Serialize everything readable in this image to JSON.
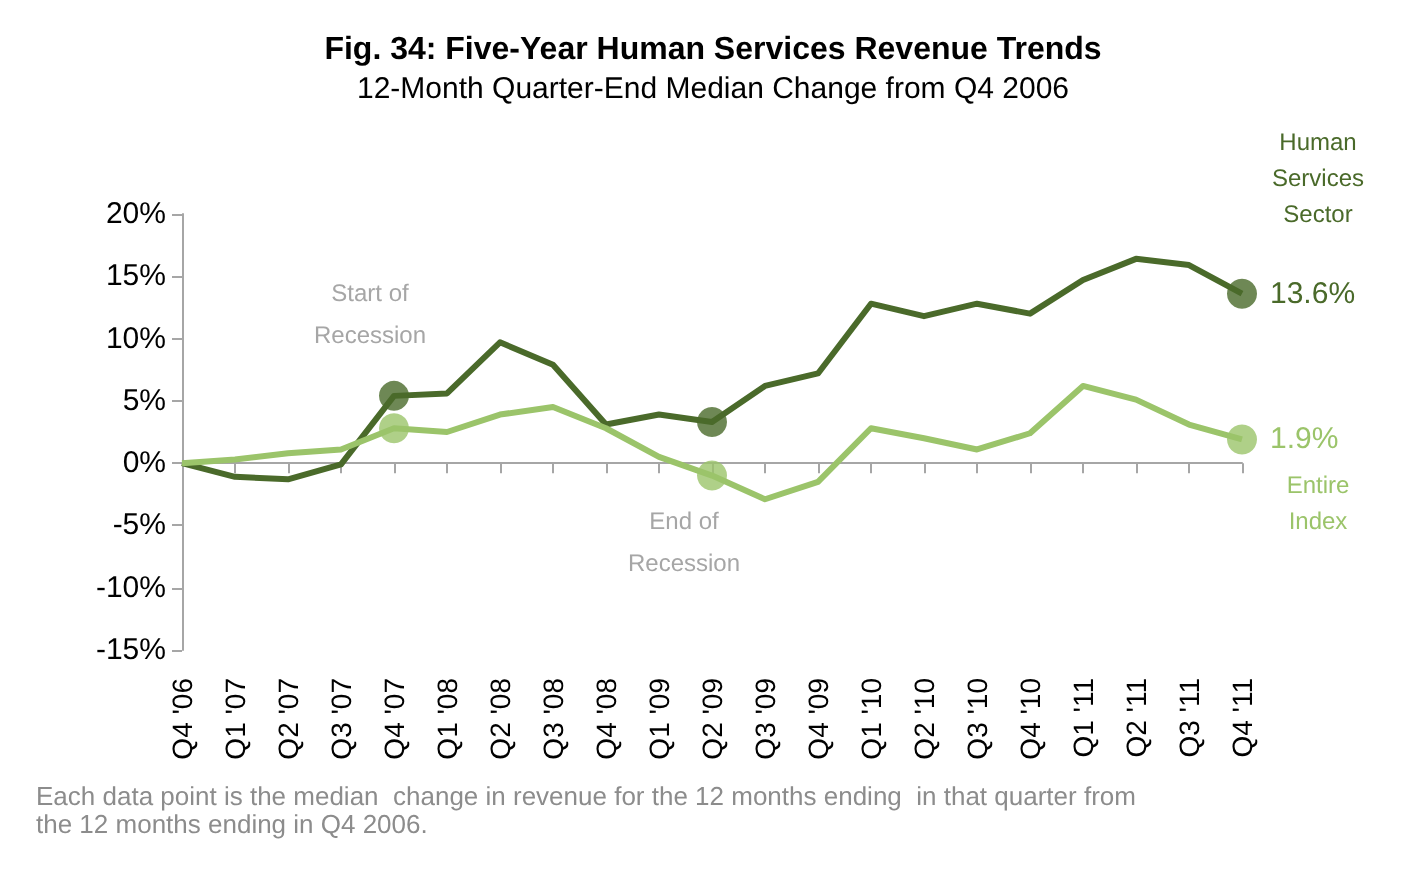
{
  "chart_data": {
    "type": "line",
    "title": "Fig. 34: Five-Year Human Services Revenue Trends",
    "subtitle": "12-Month Quarter-End Median Change from Q4 2006",
    "categories": [
      "Q4 '06",
      "Q1 '07",
      "Q2 '07",
      "Q3 '07",
      "Q4 '07",
      "Q1 '08",
      "Q2 '08",
      "Q3 '08",
      "Q4 '08",
      "Q1 '09",
      "Q2 '09",
      "Q3 '09",
      "Q4 '09",
      "Q1 '10",
      "Q2 '10",
      "Q3 '10",
      "Q4 '10",
      "Q1 '11",
      "Q2 '11",
      "Q3 '11",
      "Q4 '11"
    ],
    "series": [
      {
        "name": "Human Services Sector",
        "color": "#4a6a2a",
        "marker": "none",
        "values": [
          0,
          -1.1,
          -1.3,
          -0.1,
          5.4,
          5.6,
          9.7,
          7.9,
          3.1,
          3.9,
          3.3,
          6.2,
          7.2,
          12.8,
          11.8,
          12.8,
          12.0,
          14.7,
          16.4,
          15.9,
          13.6
        ],
        "value_labels": [
          null,
          null,
          null,
          null,
          null,
          null,
          null,
          null,
          null,
          null,
          null,
          null,
          null,
          null,
          null,
          null,
          null,
          null,
          null,
          null,
          "13.6%"
        ]
      },
      {
        "name": "Entire Index",
        "color": "#9bc46a",
        "marker": "none",
        "values": [
          0,
          0.3,
          0.8,
          1.1,
          2.8,
          2.5,
          3.9,
          4.5,
          2.8,
          0.5,
          -1.0,
          -2.9,
          -1.5,
          2.8,
          2.0,
          1.1,
          2.4,
          6.2,
          5.1,
          3.1,
          1.9
        ],
        "value_labels": [
          null,
          null,
          null,
          null,
          null,
          null,
          null,
          null,
          null,
          null,
          null,
          null,
          null,
          null,
          null,
          null,
          null,
          null,
          null,
          null,
          "1.9%"
        ]
      },
      {
        "type": "scatter",
        "color": "#4a6a2a",
        "marker": "circle",
        "x": [
          "Q4 '07",
          "Q2 '09",
          "Q4 '11"
        ],
        "values": [
          5.4,
          3.3,
          13.6
        ]
      },
      {
        "type": "scatter",
        "color": "#9bc46a",
        "marker": "circle",
        "x": [
          "Q4 '07",
          "Q2 '09",
          "Q4 '11"
        ],
        "values": [
          2.8,
          -1.0,
          1.9
        ]
      }
    ],
    "ylim": [
      -15,
      20
    ],
    "yticks": [
      {
        "value": -15,
        "label": "-15%"
      },
      {
        "value": -10,
        "label": "-10%"
      },
      {
        "value": -5,
        "label": "-5%"
      },
      {
        "value": 0,
        "label": "0%"
      },
      {
        "value": 5,
        "label": "5%"
      },
      {
        "value": 10,
        "label": "10%"
      },
      {
        "value": 15,
        "label": "15%"
      },
      {
        "value": 20,
        "label": "20%"
      }
    ],
    "annotations": [
      {
        "text": "Start of\nRecession",
        "x": "Q4 '07",
        "y": 5.4
      },
      {
        "text": "End of\nRecession",
        "x": "Q2 '09",
        "y": -1.0
      },
      "Each data point is the median  change in revenue for the 12 months ending  in that quarter from\nthe 12 months ending in Q4 2006."
    ],
    "legend": false
  }
}
